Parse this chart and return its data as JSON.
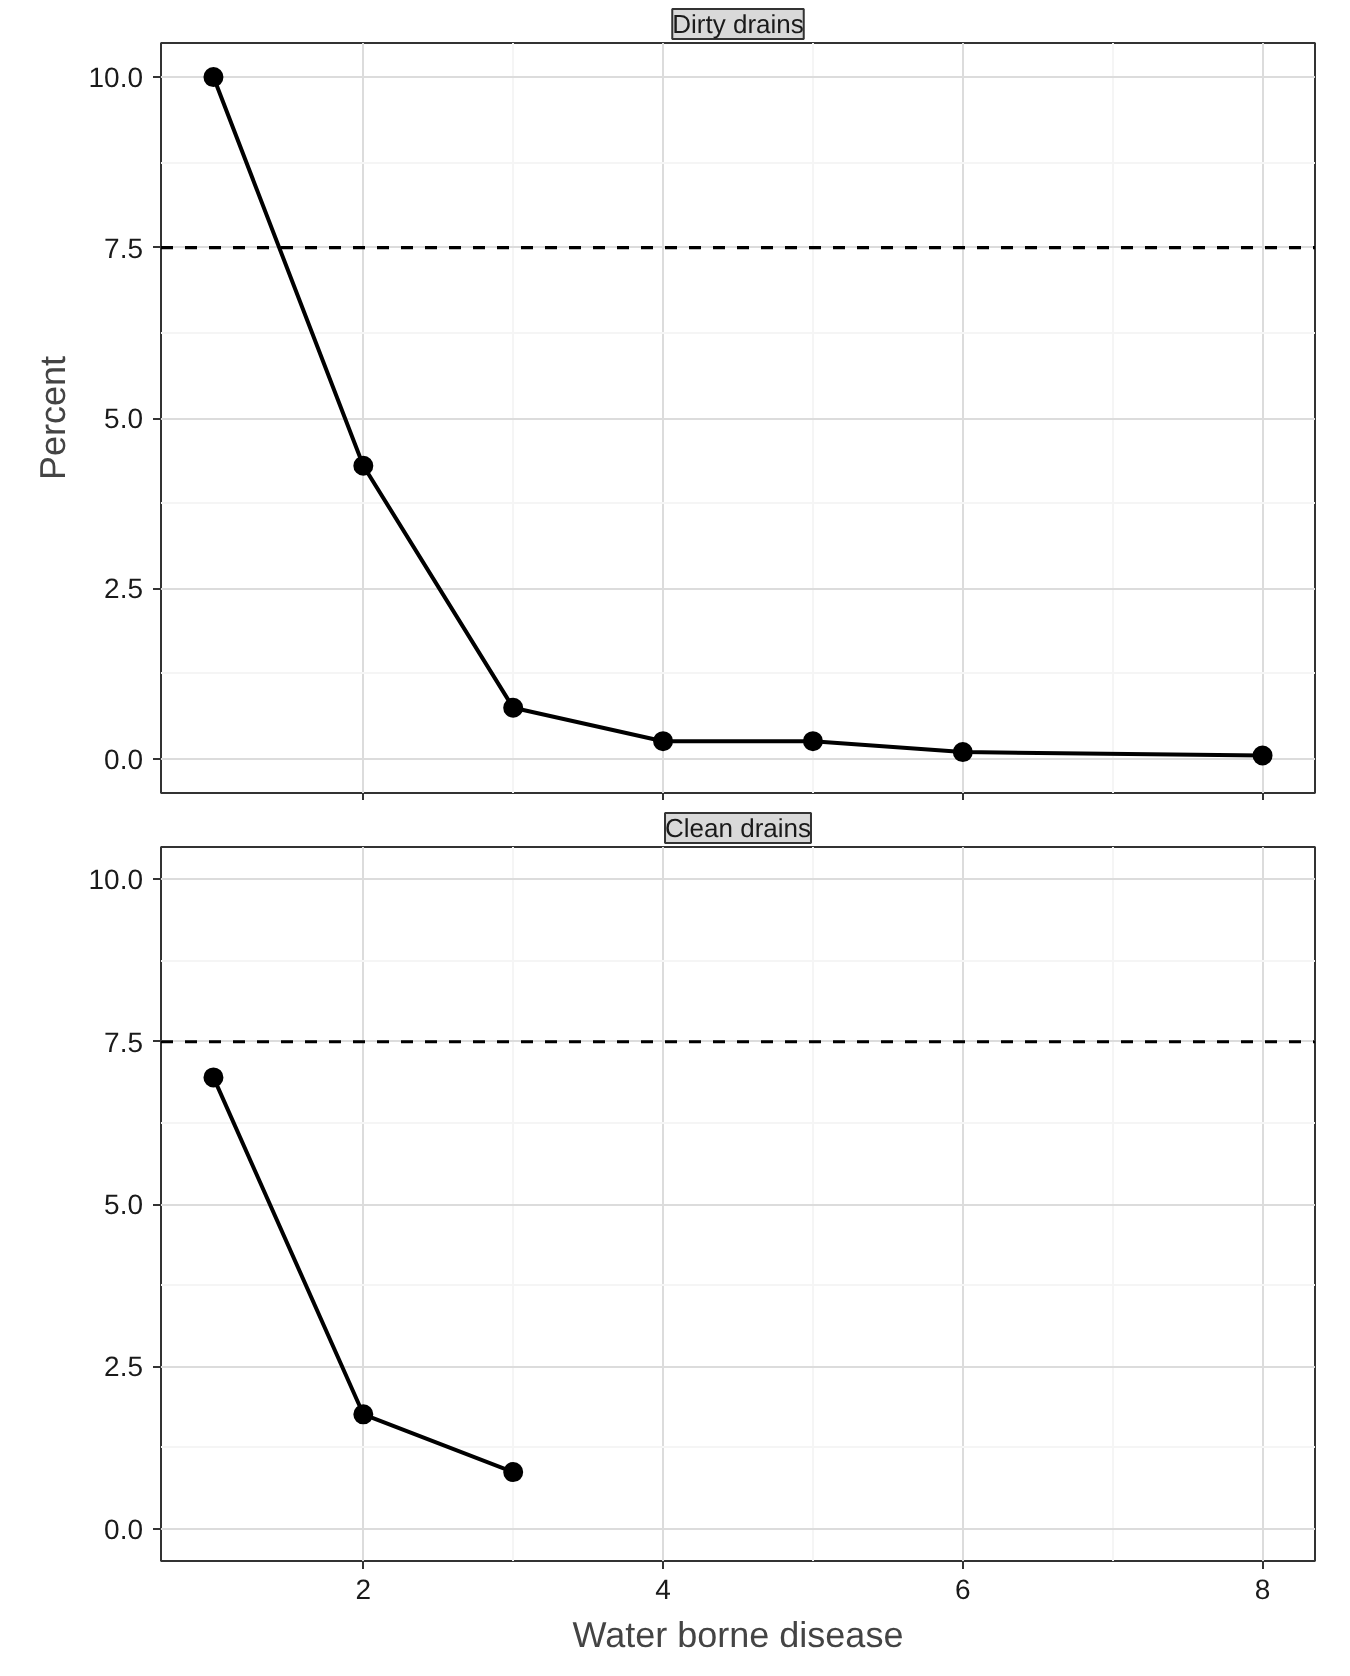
{
  "chart_data": [
    {
      "type": "line",
      "title": "Dirty drains",
      "ylabel": "Percent",
      "x": [
        1,
        2,
        3,
        4,
        5,
        6,
        8
      ],
      "series": [
        {
          "color": "#000000",
          "values": [
            10.0,
            4.3,
            0.75,
            0.26,
            0.26,
            0.1,
            0.05
          ]
        }
      ],
      "xlim": [
        0.65,
        8.35
      ],
      "xticks": [
        2,
        4,
        6,
        8
      ],
      "ylim": [
        -0.5,
        10.5
      ],
      "yticks": [
        {
          "value": 0,
          "label": "0.0"
        },
        {
          "value": 2.5,
          "label": "2.5"
        },
        {
          "value": 5,
          "label": "5.0"
        },
        {
          "value": 7.5,
          "label": "7.5"
        },
        {
          "value": 10,
          "label": "10.0"
        }
      ],
      "ref_lines": [
        {
          "axis": "y",
          "value": 7.5,
          "line_style": "dashed",
          "color": "#000000"
        }
      ],
      "grid": true,
      "marker": "circle",
      "line_style": "solid",
      "tick_labels": "y"
    },
    {
      "type": "line",
      "title": "Clean drains",
      "xlabel": "Water borne disease",
      "x": [
        1,
        2,
        3
      ],
      "series": [
        {
          "color": "#000000",
          "values": [
            6.95,
            1.76,
            0.87
          ]
        }
      ],
      "xlim": [
        0.65,
        8.35
      ],
      "xticks": [
        2,
        4,
        6,
        8
      ],
      "ylim": [
        -0.5,
        10.5
      ],
      "yticks": [
        {
          "value": 0,
          "label": "0.0"
        },
        {
          "value": 2.5,
          "label": "2.5"
        },
        {
          "value": 5,
          "label": "5.0"
        },
        {
          "value": 7.5,
          "label": "7.5"
        },
        {
          "value": 10,
          "label": "10.0"
        }
      ],
      "ref_lines": [
        {
          "axis": "y",
          "value": 7.5,
          "line_style": "dashed",
          "color": "#000000"
        }
      ],
      "grid": true,
      "marker": "circle",
      "line_style": "solid"
    }
  ]
}
